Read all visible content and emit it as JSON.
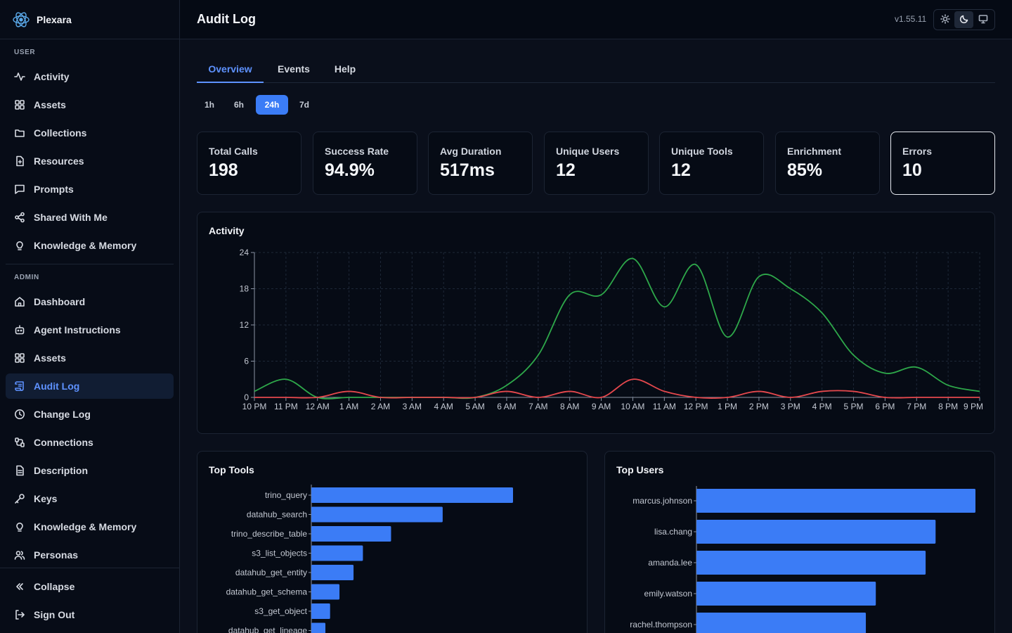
{
  "brand": {
    "name": "Plexara",
    "logo_icon": "brain-network-icon"
  },
  "sidebar": {
    "user_label": "USER",
    "user_items": [
      {
        "label": "Activity",
        "icon": "activity-icon"
      },
      {
        "label": "Assets",
        "icon": "grid-icon"
      },
      {
        "label": "Collections",
        "icon": "folder-icon"
      },
      {
        "label": "Resources",
        "icon": "file-icon"
      },
      {
        "label": "Prompts",
        "icon": "message-icon"
      },
      {
        "label": "Shared With Me",
        "icon": "share-icon"
      },
      {
        "label": "Knowledge & Memory",
        "icon": "lightbulb-icon"
      }
    ],
    "admin_label": "ADMIN",
    "admin_items": [
      {
        "label": "Dashboard",
        "icon": "home-icon"
      },
      {
        "label": "Agent Instructions",
        "icon": "bot-icon"
      },
      {
        "label": "Assets",
        "icon": "grid-icon"
      },
      {
        "label": "Audit Log",
        "icon": "scroll-icon",
        "active": true
      },
      {
        "label": "Change Log",
        "icon": "clock-icon"
      },
      {
        "label": "Connections",
        "icon": "plug-icon"
      },
      {
        "label": "Description",
        "icon": "document-icon"
      },
      {
        "label": "Keys",
        "icon": "key-icon"
      },
      {
        "label": "Knowledge & Memory",
        "icon": "lightbulb-icon"
      },
      {
        "label": "Personas",
        "icon": "users-icon"
      }
    ],
    "collapse_label": "Collapse",
    "signout_label": "Sign Out"
  },
  "header": {
    "title": "Audit Log",
    "version": "v1.55.11",
    "theme_options": [
      "sun-icon",
      "moon-icon",
      "monitor-icon"
    ],
    "theme_selected": "moon-icon"
  },
  "tabs": [
    {
      "label": "Overview",
      "active": true
    },
    {
      "label": "Events"
    },
    {
      "label": "Help"
    }
  ],
  "time_ranges": [
    {
      "label": "1h"
    },
    {
      "label": "6h"
    },
    {
      "label": "24h",
      "active": true
    },
    {
      "label": "7d"
    }
  ],
  "stats": [
    {
      "label": "Total Calls",
      "value": "198"
    },
    {
      "label": "Success Rate",
      "value": "94.9%"
    },
    {
      "label": "Avg Duration",
      "value": "517ms"
    },
    {
      "label": "Unique Users",
      "value": "12"
    },
    {
      "label": "Unique Tools",
      "value": "12"
    },
    {
      "label": "Enrichment",
      "value": "85%"
    },
    {
      "label": "Errors",
      "value": "10",
      "selected": true
    }
  ],
  "activity_panel": {
    "title": "Activity"
  },
  "top_tools_panel": {
    "title": "Top Tools"
  },
  "top_users_panel": {
    "title": "Top Users"
  },
  "colors": {
    "accent": "#5e92ff",
    "bar": "#3b7cf6",
    "success_line": "#2ea84a",
    "error_line": "#e5484d",
    "background": "#0a0f1b"
  },
  "chart_data": [
    {
      "type": "line",
      "x": [
        "10 PM",
        "11 PM",
        "12 AM",
        "1 AM",
        "2 AM",
        "3 AM",
        "4 AM",
        "5 AM",
        "6 AM",
        "7 AM",
        "8 AM",
        "9 AM",
        "10 AM",
        "11 AM",
        "12 PM",
        "1 PM",
        "2 PM",
        "3 PM",
        "4 PM",
        "5 PM",
        "6 PM",
        "7 PM",
        "8 PM",
        "9 PM"
      ],
      "series": [
        {
          "color": "#2ea84a",
          "values": [
            1,
            3,
            0,
            0,
            0,
            0,
            0,
            0,
            2,
            7,
            17,
            17,
            23,
            15,
            22,
            10,
            20,
            18,
            14,
            7,
            4,
            5,
            2,
            1
          ]
        },
        {
          "color": "#e5484d",
          "values": [
            0,
            0,
            0,
            1,
            0,
            0,
            0,
            0,
            1,
            0,
            1,
            0,
            3,
            1,
            0,
            0,
            1,
            0,
            1,
            1,
            0,
            0,
            0,
            0
          ]
        }
      ],
      "ylim": [
        0,
        24
      ],
      "yticks": [
        0,
        6,
        12,
        18,
        24
      ],
      "grid": true
    },
    {
      "type": "bar",
      "orientation": "horizontal",
      "categories": [
        "trino_query",
        "datahub_search",
        "trino_describe_table",
        "s3_list_objects",
        "datahub_get_entity",
        "datahub_get_schema",
        "s3_get_object",
        "datahub_get_lineage"
      ],
      "values": [
        43,
        28,
        17,
        11,
        9,
        6,
        4,
        3
      ]
    },
    {
      "type": "bar",
      "orientation": "horizontal",
      "categories": [
        "marcus.johnson",
        "lisa.chang",
        "amanda.lee",
        "emily.watson",
        "rachel.thompson"
      ],
      "values": [
        28,
        24,
        23,
        18,
        17
      ]
    }
  ]
}
